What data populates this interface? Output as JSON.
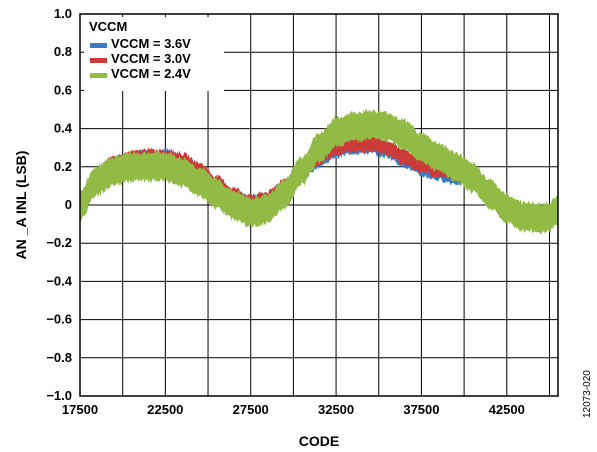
{
  "chart_data": {
    "type": "line",
    "xlabel": "CODE",
    "ylabel": "AN _A INL (LSB)",
    "xlim": [
      17500,
      45500
    ],
    "ylim": [
      -1.0,
      1.0
    ],
    "x_ticks": [
      17500,
      22500,
      27500,
      32500,
      37500,
      42500
    ],
    "y_ticks": [
      1.0,
      0.8,
      0.6,
      0.4,
      0.2,
      0,
      -0.2,
      -0.4,
      -0.6,
      -0.8,
      -1.0
    ],
    "x_tick_labels": [
      "17500",
      "22500",
      "27500",
      "32500",
      "37500",
      "42500"
    ],
    "y_tick_labels": [
      "1.0",
      "0.8",
      "0.6",
      "0.4",
      "0.2",
      "0",
      "−0.2",
      "−0.4",
      "−0.6",
      "−0.8",
      "−1.0"
    ],
    "grid": true,
    "legend": {
      "title": "VCCM",
      "placement": "top-left"
    },
    "figure_id": "12073-020",
    "x": [
      17500,
      18500,
      19500,
      20500,
      21500,
      22500,
      23500,
      24500,
      25500,
      26500,
      27500,
      28500,
      29500,
      30500,
      31500,
      32500,
      33500,
      34500,
      35500,
      36500,
      37500,
      38500,
      39500,
      40500,
      41500,
      42500,
      43500,
      44500,
      45000,
      45500
    ],
    "series": [
      {
        "name": "VCCM = 3.6V",
        "color": "#3b7dc4",
        "values": [
          0.0,
          0.15,
          0.21,
          0.24,
          0.25,
          0.25,
          0.22,
          0.17,
          0.1,
          0.04,
          0.01,
          0.03,
          0.09,
          0.17,
          0.24,
          0.29,
          0.31,
          0.31,
          0.29,
          0.24,
          0.19,
          0.17,
          0.15,
          0.13,
          0.05,
          -0.04,
          -0.06,
          -0.06,
          -0.05,
          -0.02
        ],
        "band": 0.035
      },
      {
        "name": "VCCM = 3.0V",
        "color": "#cc3a3a",
        "values": [
          0.0,
          0.15,
          0.21,
          0.24,
          0.25,
          0.25,
          0.23,
          0.18,
          0.11,
          0.05,
          0.01,
          0.03,
          0.1,
          0.18,
          0.25,
          0.3,
          0.32,
          0.32,
          0.3,
          0.25,
          0.21,
          0.19,
          0.17,
          0.14,
          0.06,
          -0.03,
          -0.06,
          -0.06,
          -0.05,
          -0.02
        ],
        "band": 0.035
      },
      {
        "name": "VCCM = 2.4V",
        "color": "#92bb45",
        "values": [
          0.0,
          0.13,
          0.18,
          0.2,
          0.2,
          0.2,
          0.17,
          0.12,
          0.06,
          0.0,
          -0.04,
          -0.02,
          0.06,
          0.18,
          0.3,
          0.38,
          0.41,
          0.42,
          0.41,
          0.37,
          0.3,
          0.25,
          0.2,
          0.14,
          0.06,
          -0.02,
          -0.06,
          -0.07,
          -0.06,
          -0.03
        ],
        "band": 0.07
      }
    ]
  }
}
